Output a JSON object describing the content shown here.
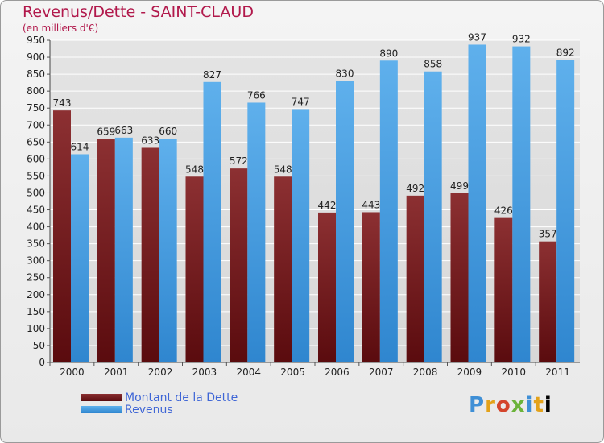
{
  "title": "Revenus/Dette - SAINT-CLAUD",
  "subtitle": "(en milliers d'€)",
  "logo": "Proxiti",
  "colors": {
    "title": "#b1184b",
    "dette_light": "#8c3032",
    "dette_dark": "#5a0b0e",
    "revenus_light": "#5fb0ec",
    "revenus_dark": "#2f86cf",
    "legend_text": "#3f66d6",
    "grid": "#ffffff"
  },
  "chart_data": {
    "type": "bar",
    "title": "Revenus/Dette - SAINT-CLAUD",
    "ylabel": "(en milliers d'€)",
    "xlabel": "",
    "categories": [
      "2000",
      "2001",
      "2002",
      "2003",
      "2004",
      "2005",
      "2006",
      "2007",
      "2008",
      "2009",
      "2010",
      "2011"
    ],
    "series": [
      {
        "name": "Montant de la Dette",
        "values": [
          743,
          659,
          633,
          548,
          572,
          548,
          442,
          443,
          492,
          499,
          426,
          357
        ]
      },
      {
        "name": "Revenus",
        "values": [
          614,
          663,
          660,
          827,
          766,
          747,
          830,
          890,
          858,
          937,
          932,
          892
        ]
      }
    ],
    "ylim": [
      0,
      950
    ],
    "ytick_step": 50,
    "grid": true,
    "legend_position": "bottom-left"
  }
}
